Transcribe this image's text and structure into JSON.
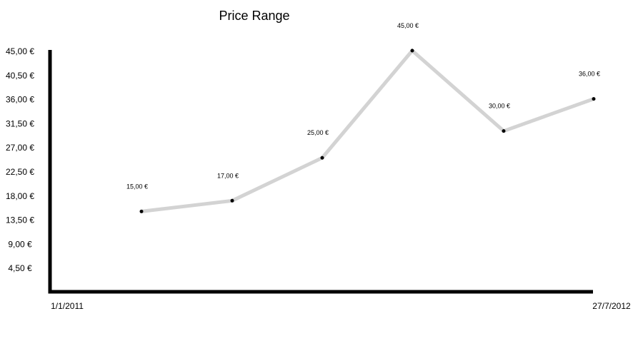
{
  "chart_data": {
    "type": "line",
    "title": "Price Range",
    "xlabel": "",
    "ylabel": "",
    "x_tick_labels": [
      "1/1/2011",
      "27/7/2012"
    ],
    "y_tick_labels": [
      "45,00 €",
      "40,50 €",
      "36,00 €",
      "31,50 €",
      "27,00 €",
      "22,50 €",
      "18,00 €",
      "13,50 €",
      "9,00 €",
      "4,50 €"
    ],
    "y_tick_values": [
      45,
      40.5,
      36,
      31.5,
      27,
      22.5,
      18,
      13.5,
      9,
      4.5
    ],
    "ylim": [
      0,
      45
    ],
    "series": [
      {
        "values": [
          15,
          17,
          25,
          45,
          30,
          36
        ],
        "labels": [
          "15,00 €",
          "17,00 €",
          "25,00 €",
          "45,00 €",
          "30,00 €",
          "36,00 €"
        ]
      }
    ],
    "grid": false,
    "legend": "none",
    "colors": {
      "line": "#d3d3d3",
      "marker": "#000000",
      "axis": "#000000"
    }
  }
}
